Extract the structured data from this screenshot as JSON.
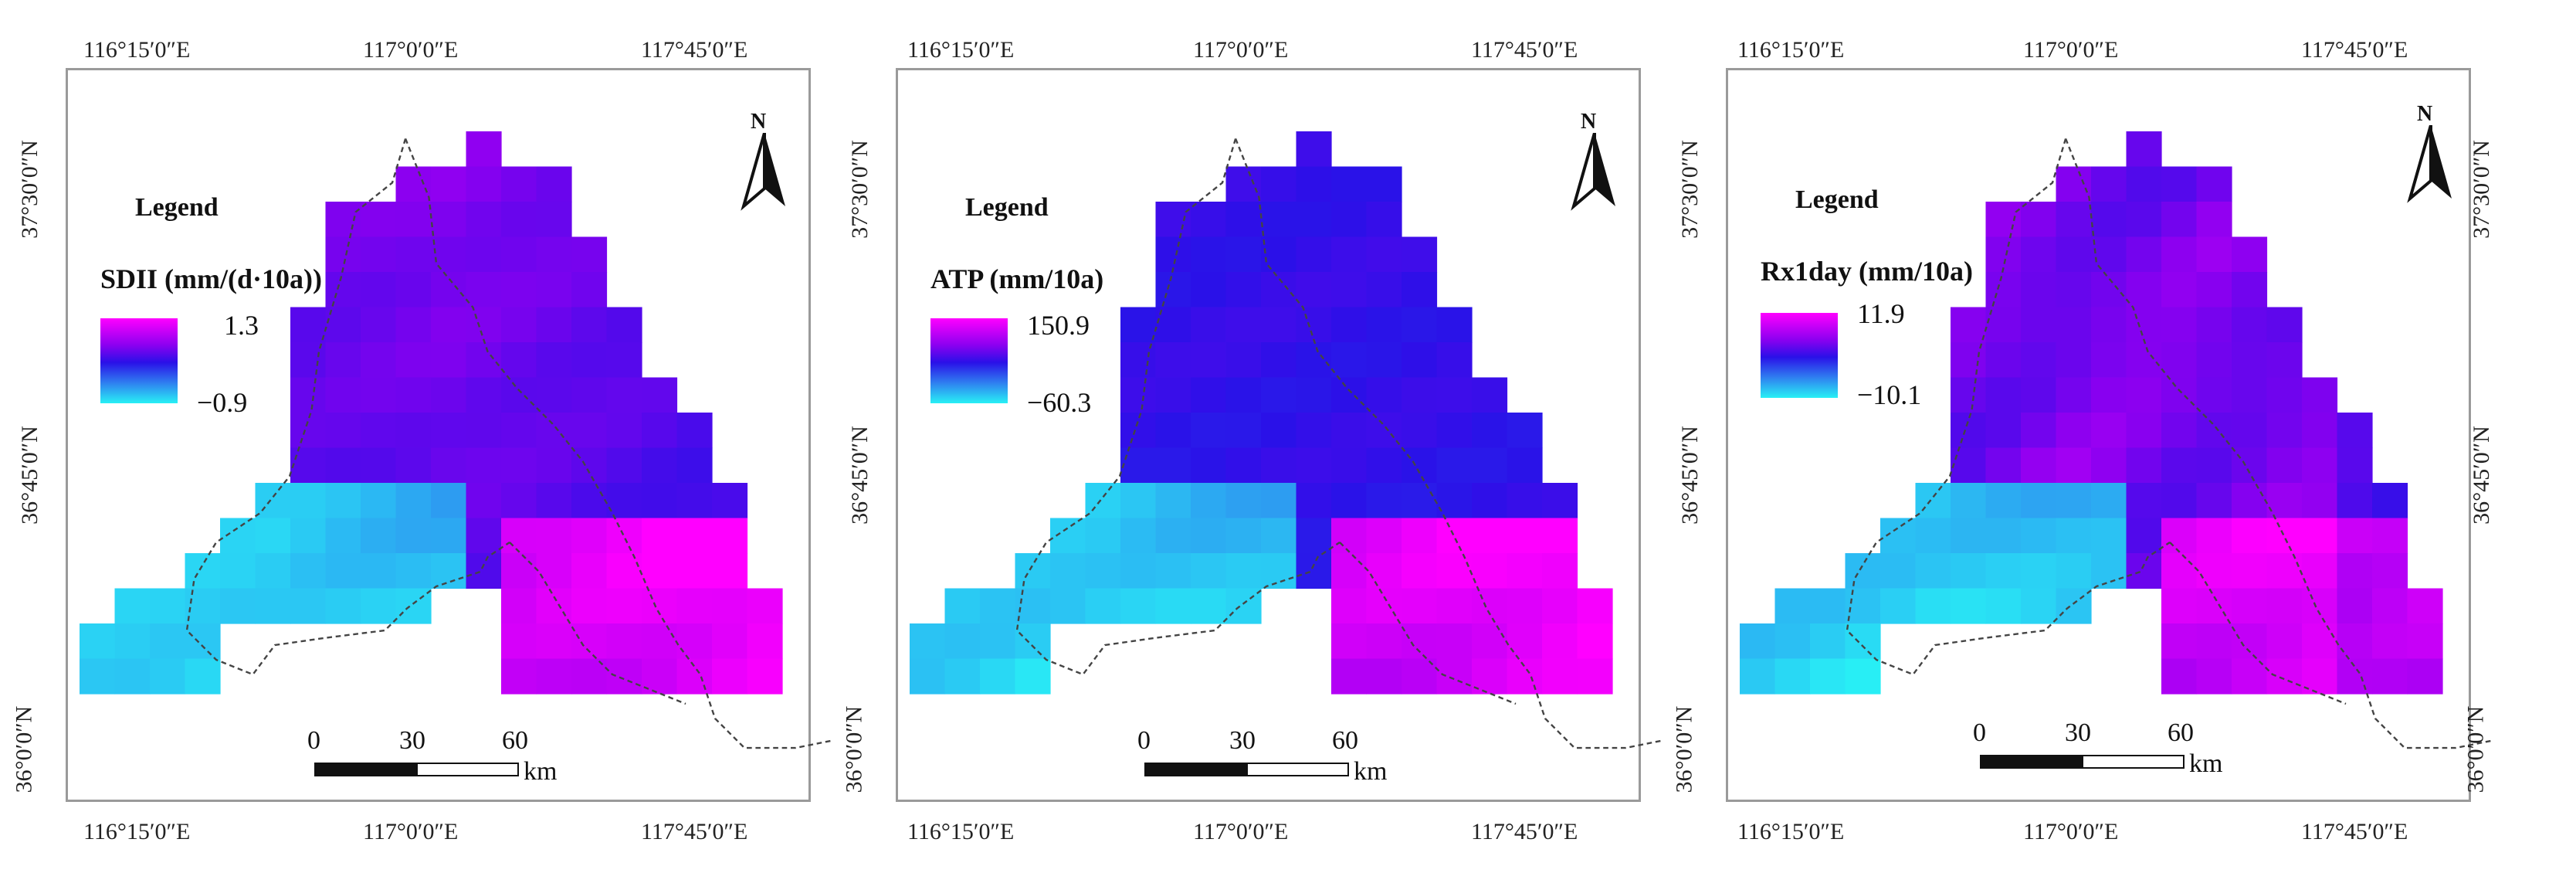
{
  "colors": {
    "ramp_high": "#ff00ff",
    "ramp_mid_high": "#8a00f0",
    "ramp_mid": "#2a10e8",
    "ramp_mid_low": "#2f7ff0",
    "ramp_low": "#28f0f5",
    "boundary": "#444444"
  },
  "axes": {
    "lon_labels": [
      "116°15′0″E",
      "117°0′0″E",
      "117°45′0″E"
    ],
    "lat_labels": [
      "37°30′0″N",
      "36°45′0″N",
      "36°0′0″N"
    ]
  },
  "maps": [
    {
      "legend_title": "Legend",
      "variable": "SDII (mm/(d·10a))",
      "max": "1.3",
      "min": "−0.9",
      "north": "N",
      "scale": {
        "ticks": [
          "0",
          "30",
          "60"
        ],
        "unit": "km"
      }
    },
    {
      "legend_title": "Legend",
      "variable": "ATP (mm/10a)",
      "max": "150.9",
      "min": "−60.3",
      "north": "N",
      "scale": {
        "ticks": [
          "0",
          "30",
          "60"
        ],
        "unit": "km"
      }
    },
    {
      "legend_title": "Legend",
      "variable": "Rx1day (mm/10a)",
      "max": "11.9",
      "min": "−10.1",
      "north": "N",
      "scale": {
        "ticks": [
          "0",
          "30",
          "60"
        ],
        "unit": "km"
      }
    }
  ],
  "icons": {
    "north_arrow": "north-arrow-icon"
  }
}
